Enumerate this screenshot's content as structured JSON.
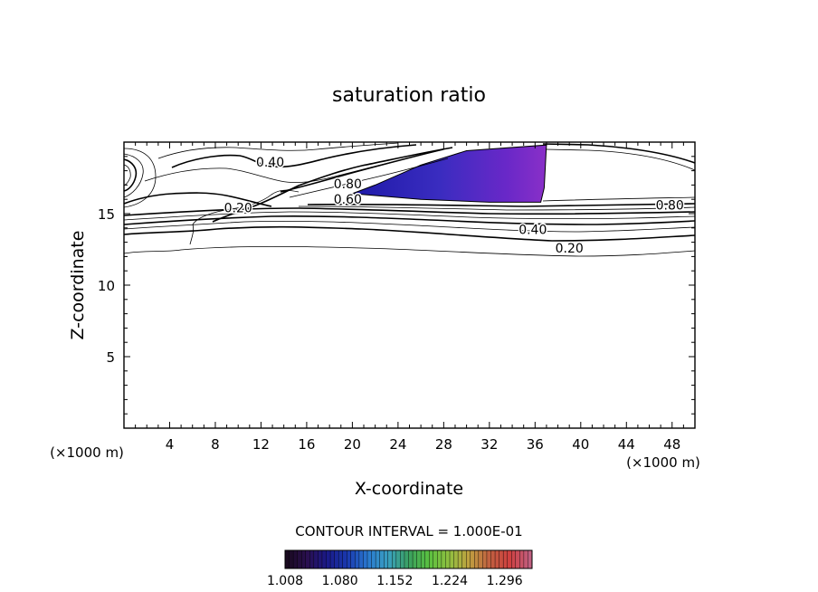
{
  "chart_data": {
    "type": "heatmap",
    "title": "saturation ratio",
    "xlabel": "X-coordinate",
    "ylabel": "Z-coordinate",
    "x_unit": "(×1000 m)",
    "y_unit": "(×1000 m)",
    "xlim": [
      0,
      50
    ],
    "ylim": [
      0,
      20
    ],
    "x_ticks": [
      4,
      8,
      12,
      16,
      20,
      24,
      28,
      32,
      36,
      40,
      44,
      48
    ],
    "y_ticks": [
      5,
      10,
      15
    ],
    "contour_interval_text": "CONTOUR INTERVAL = 1.000E-01",
    "contour_labels": [
      {
        "text": "0.40",
        "x": 12.8,
        "z": 18.6
      },
      {
        "text": "0.20",
        "x": 10.0,
        "z": 15.4
      },
      {
        "text": "0.80",
        "x": 19.6,
        "z": 17.1
      },
      {
        "text": "0.60",
        "x": 19.6,
        "z": 16.0
      },
      {
        "text": "0.80",
        "x": 47.8,
        "z": 15.6
      },
      {
        "text": "0.40",
        "x": 35.8,
        "z": 13.9
      },
      {
        "text": "0.20",
        "x": 39.0,
        "z": 12.6
      }
    ],
    "contour_levels": [
      0.1,
      0.2,
      0.3,
      0.4,
      0.5,
      0.6,
      0.7,
      0.8,
      0.9
    ],
    "shaded_region": {
      "description_level": "saturation ratio > 1.0",
      "vertices": [
        [
          20,
          16.4
        ],
        [
          22,
          17.0
        ],
        [
          26,
          18.4
        ],
        [
          30,
          19.4
        ],
        [
          37,
          19.8
        ],
        [
          36.8,
          16.8
        ],
        [
          36.5,
          15.8
        ],
        [
          32,
          15.8
        ],
        [
          26,
          16.0
        ],
        [
          20,
          16.4
        ]
      ]
    },
    "colorbar": {
      "min": 1.008,
      "max": 1.332,
      "tick_labels": [
        "1.008",
        "1.080",
        "1.152",
        "1.224",
        "1.296"
      ],
      "colors": [
        "#1a0a20",
        "#2a1050",
        "#1a1a8a",
        "#1a3ab0",
        "#2a7ad0",
        "#3aa0c0",
        "#3aa060",
        "#5ac040",
        "#90c040",
        "#c0a040",
        "#c06040",
        "#d04040",
        "#c06080"
      ]
    },
    "grid": false
  }
}
